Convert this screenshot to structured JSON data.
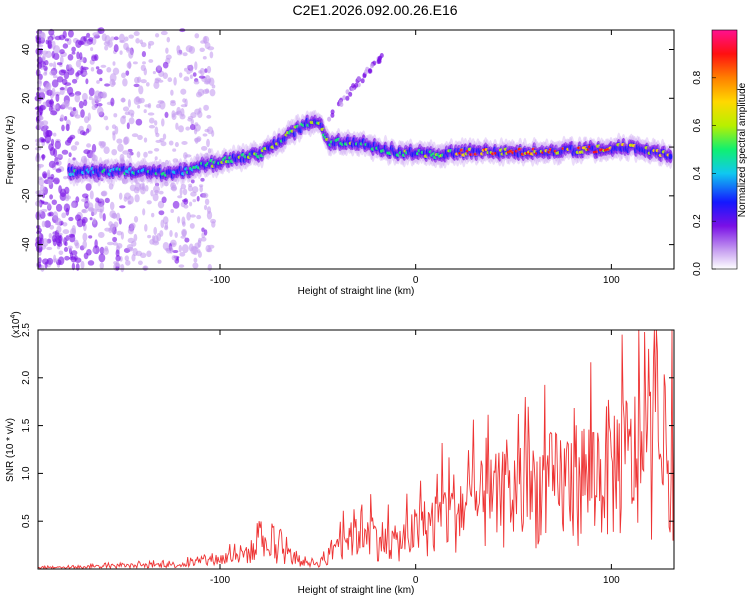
{
  "title": "C2E1.2026.092.00.26.E16",
  "chart_data": [
    {
      "type": "heatmap",
      "xlabel": "Height of straight line (km)",
      "ylabel": "Frequency (Hz)",
      "xlim": [
        -193,
        132
      ],
      "ylim": [
        -50,
        48
      ],
      "xticks": [
        -100,
        0,
        100
      ],
      "xtick_labels": [
        "-100",
        "0",
        "100"
      ],
      "yticks": [
        -40,
        -20,
        0,
        20,
        40
      ],
      "ytick_labels": [
        "-40",
        "-20",
        "0",
        "20",
        "40"
      ],
      "colorbar": {
        "label": "Normalized spectral amplitude",
        "range": [
          0.0,
          1.0
        ],
        "ticks": [
          0.0,
          0.2,
          0.4,
          0.6,
          0.8
        ],
        "tick_labels": [
          "0.0",
          "0.2",
          "0.4",
          "0.6",
          "0.8"
        ],
        "colors": [
          "#ffffff",
          "#c59cf0",
          "#7a10e6",
          "#1418ff",
          "#10c8f0",
          "#10f070",
          "#b8f000",
          "#ffd800",
          "#ff8000",
          "#ff1010",
          "#ff1090"
        ]
      },
      "ridge_x": [
        -175,
        -150,
        -125,
        -100,
        -80,
        -65,
        -55,
        -50,
        -45,
        -30,
        -10,
        10,
        30,
        60,
        90,
        110,
        130
      ],
      "ridge_freq": [
        -10,
        -10,
        -11,
        -6,
        -3,
        5,
        10,
        11,
        2,
        2,
        -2,
        -3,
        -2,
        -2,
        -1,
        0,
        -3
      ]
    },
    {
      "type": "line",
      "xlabel": "Height of straight line (km)",
      "ylabel": "SNR (10 * v/v)",
      "y_multiplier": "(x10",
      "y_multiplier_exp": "4",
      "xlim": [
        -193,
        132
      ],
      "ylim": [
        0,
        2.5
      ],
      "xticks": [
        -100,
        0,
        100
      ],
      "xtick_labels": [
        "-100",
        "0",
        "100"
      ],
      "yticks": [
        0.5,
        1.0,
        1.5,
        2.0,
        2.5
      ],
      "ytick_labels": [
        "0.5",
        "1.0",
        "1.5",
        "2.0",
        "2.5"
      ],
      "series": [
        {
          "name": "SNR",
          "color": "#ee3333",
          "x": [
            -193,
            -175,
            -160,
            -140,
            -120,
            -110,
            -95,
            -85,
            -80,
            -75,
            -70,
            -65,
            -60,
            -50,
            -45,
            -40,
            -35,
            -30,
            -25,
            -20,
            -15,
            -10,
            -5,
            0,
            10,
            20,
            30,
            40,
            50,
            60,
            70,
            80,
            90,
            100,
            110,
            120,
            130
          ],
          "envelope": [
            0.02,
            0.03,
            0.05,
            0.06,
            0.08,
            0.12,
            0.2,
            0.3,
            0.35,
            0.38,
            0.32,
            0.25,
            0.15,
            0.1,
            0.2,
            0.5,
            0.6,
            0.65,
            0.75,
            0.55,
            0.5,
            0.45,
            0.55,
            0.65,
            0.85,
            1.05,
            1.1,
            1.2,
            1.3,
            1.4,
            1.45,
            1.55,
            1.65,
            1.8,
            1.9,
            2.0,
            1.9
          ]
        }
      ]
    }
  ]
}
